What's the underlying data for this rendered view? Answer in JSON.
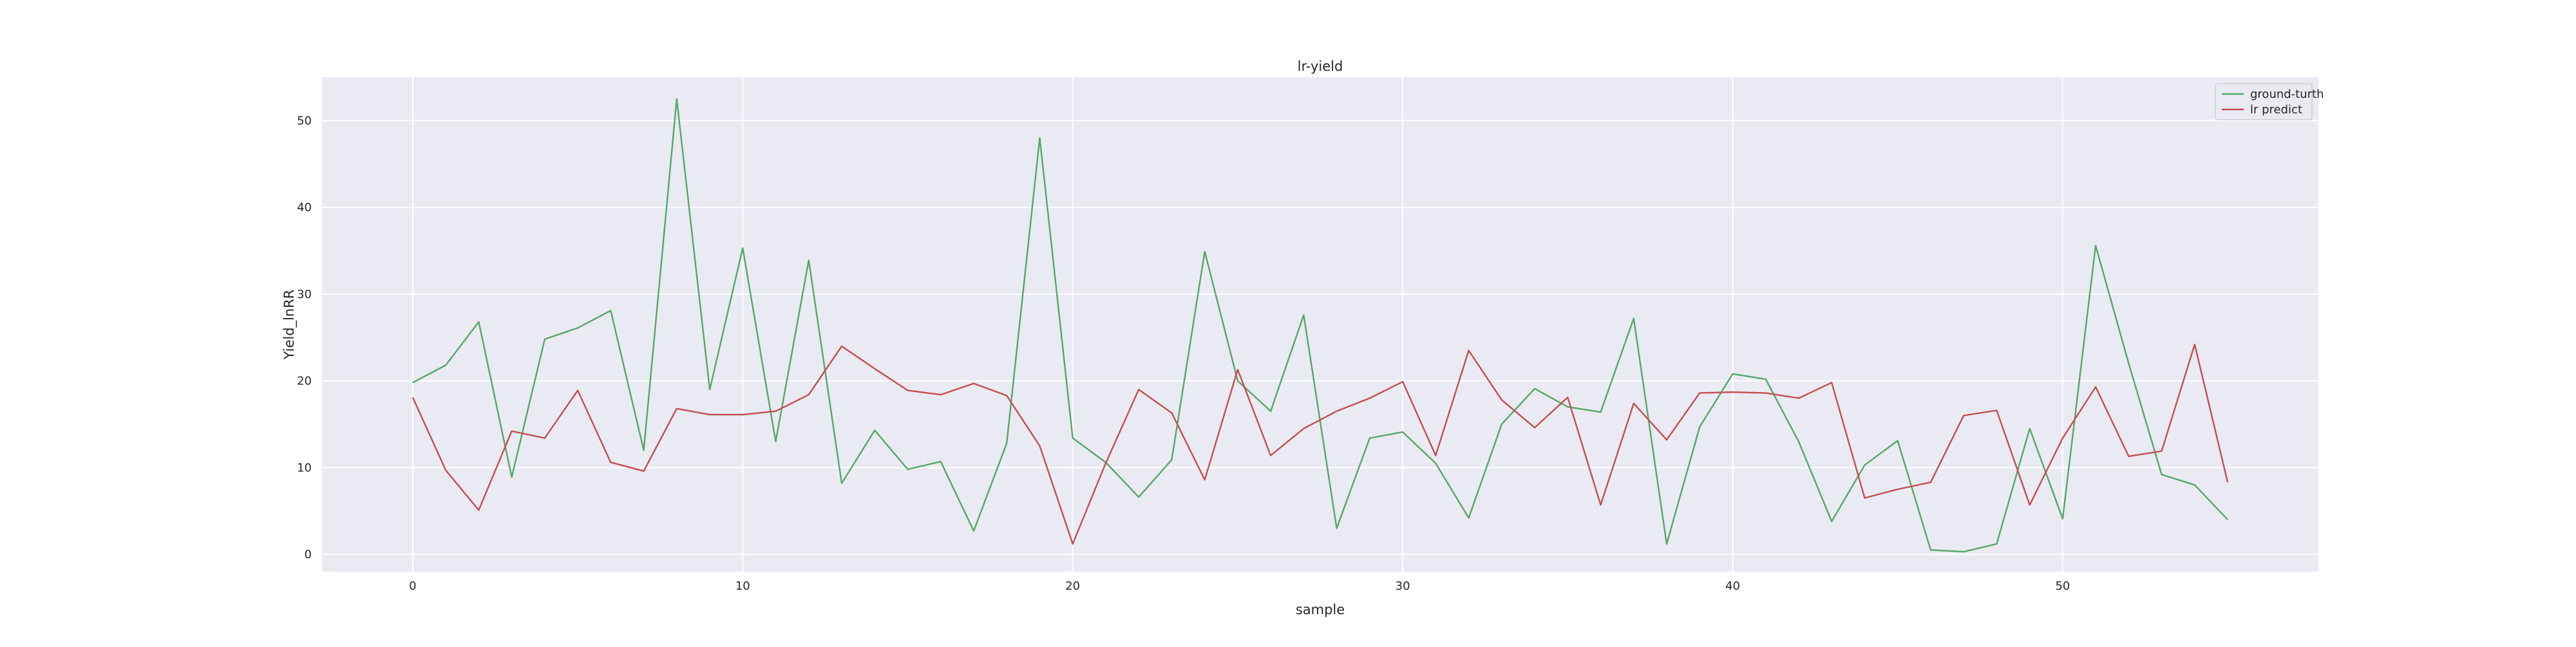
{
  "chart_data": {
    "type": "line",
    "title": "lr-yield",
    "xlabel": "sample",
    "ylabel": "Yield_lnRR",
    "xlim": [
      -2.75,
      57.75
    ],
    "ylim": [
      -2.0,
      55.0
    ],
    "xticks": [
      0,
      10,
      20,
      30,
      40,
      50
    ],
    "yticks": [
      0,
      10,
      20,
      30,
      40,
      50
    ],
    "grid": true,
    "legend_position": "top-right",
    "x": [
      0,
      1,
      2,
      3,
      4,
      5,
      6,
      7,
      8,
      9,
      10,
      11,
      12,
      13,
      14,
      15,
      16,
      17,
      18,
      19,
      20,
      21,
      22,
      23,
      24,
      25,
      26,
      27,
      28,
      29,
      30,
      31,
      32,
      33,
      34,
      35,
      36,
      37,
      38,
      39,
      40,
      41,
      42,
      43,
      44,
      45,
      46,
      47,
      48,
      49,
      50,
      51,
      52,
      53,
      54,
      55
    ],
    "series": [
      {
        "name": "ground-turth",
        "color": "#55a868",
        "values": [
          19.8,
          21.8,
          26.8,
          8.9,
          24.8,
          26.1,
          28.1,
          12.0,
          52.5,
          19.0,
          35.3,
          13.0,
          33.9,
          8.2,
          14.3,
          9.8,
          10.7,
          2.7,
          12.8,
          48.0,
          13.4,
          10.6,
          6.6,
          10.9,
          34.9,
          20.0,
          16.5,
          27.6,
          3.0,
          13.4,
          14.1,
          10.5,
          4.2,
          15.0,
          19.1,
          17.0,
          16.4,
          27.2,
          1.2,
          14.7,
          20.8,
          20.2,
          13.0,
          3.8,
          10.3,
          13.1,
          0.5,
          0.3,
          1.2,
          14.5,
          4.1,
          35.6,
          22.0,
          9.2,
          8.0,
          4.0
        ]
      },
      {
        "name": "lr predict",
        "color": "#c44e52",
        "values": [
          18.1,
          9.7,
          5.1,
          14.2,
          13.4,
          18.9,
          10.6,
          9.6,
          16.8,
          16.1,
          16.1,
          16.5,
          18.4,
          24.0,
          21.4,
          18.9,
          18.4,
          19.7,
          18.3,
          12.5,
          1.2,
          10.5,
          19.0,
          16.3,
          8.6,
          21.3,
          11.4,
          14.5,
          16.5,
          18.0,
          19.9,
          11.4,
          23.5,
          17.8,
          14.6,
          18.1,
          5.7,
          17.4,
          13.2,
          18.6,
          18.7,
          18.6,
          18.0,
          19.8,
          6.5,
          7.5,
          8.3,
          16.0,
          16.6,
          5.7,
          13.4,
          19.3,
          11.3,
          11.9,
          24.2,
          8.3
        ]
      }
    ]
  }
}
